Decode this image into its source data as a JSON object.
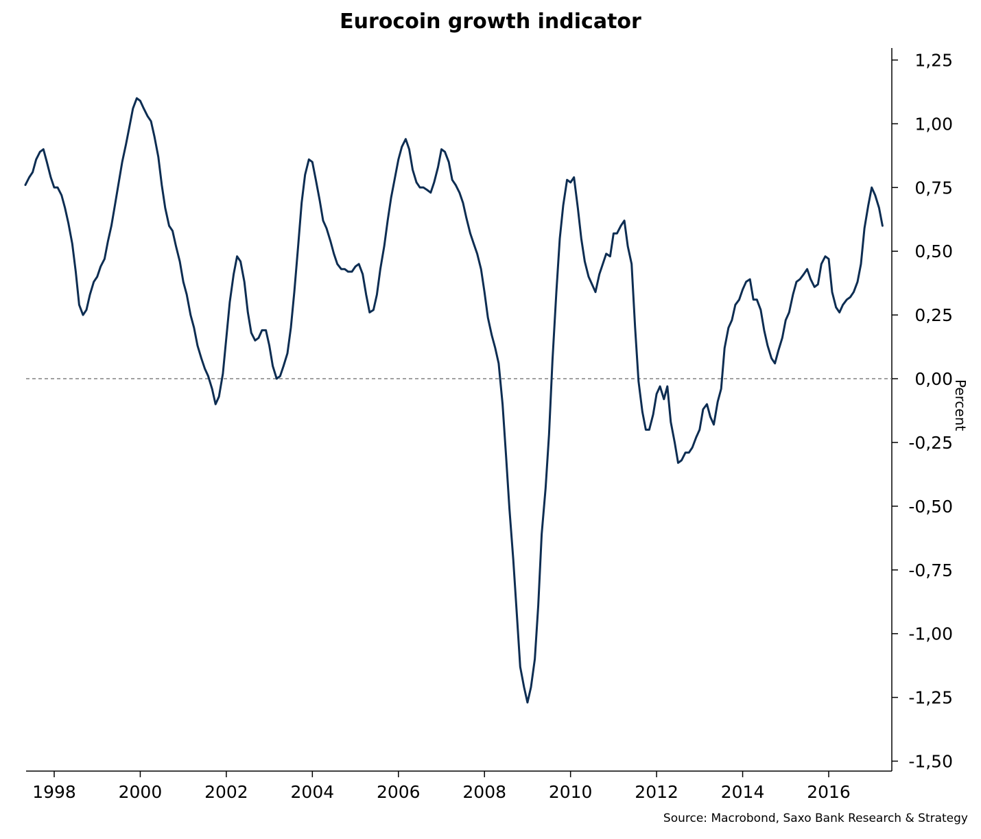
{
  "title": "Eurocoin growth indicator",
  "source": "Source: Macrobond, Saxo Bank Research & Strategy",
  "colors": {
    "series": "#0d2d52",
    "zero_line": "#808080",
    "axis": "#000000"
  },
  "chart_data": {
    "type": "line",
    "title": "Eurocoin growth indicator",
    "xlabel": "",
    "ylabel": "Percent",
    "y_axis_side": "right",
    "xlim": [
      1997.2,
      2017.35
    ],
    "ylim": [
      -1.55,
      1.3
    ],
    "x_ticks": [
      1998,
      2000,
      2002,
      2004,
      2006,
      2008,
      2010,
      2012,
      2014,
      2016
    ],
    "x_tick_labels": [
      "1998",
      "2000",
      "2002",
      "2004",
      "2006",
      "2008",
      "2010",
      "2012",
      "2014",
      "2016"
    ],
    "y_ticks": [
      1.25,
      1.0,
      0.75,
      0.5,
      0.25,
      0.0,
      -0.25,
      -0.5,
      -0.75,
      -1.0,
      -1.25,
      -1.5
    ],
    "y_tick_labels": [
      "1,25",
      "1,00",
      "0,75",
      "0,50",
      "0,25",
      "0,00",
      "-0,25",
      "-0,50",
      "-0,75",
      "-1,00",
      "-1,25",
      "-1,50"
    ],
    "reference_line": {
      "y": 0.0,
      "style": "dashed"
    },
    "grid": false,
    "legend": "none",
    "series": [
      {
        "x": [
          1997.33,
          1997.42,
          1997.5,
          1997.58,
          1997.67,
          1997.75,
          1997.83,
          1997.92,
          1998.0,
          1998.08,
          1998.17,
          1998.25,
          1998.33,
          1998.42,
          1998.5,
          1998.58,
          1998.67,
          1998.75,
          1998.83,
          1998.92,
          1999.0,
          1999.08,
          1999.17,
          1999.25,
          1999.33,
          1999.42,
          1999.5,
          1999.58,
          1999.67,
          1999.75,
          1999.83,
          1999.92,
          2000.0,
          2000.08,
          2000.17,
          2000.25,
          2000.33,
          2000.42,
          2000.5,
          2000.58,
          2000.67,
          2000.75,
          2000.83,
          2000.92,
          2001.0,
          2001.08,
          2001.17,
          2001.25,
          2001.33,
          2001.42,
          2001.5,
          2001.58,
          2001.67,
          2001.75,
          2001.83,
          2001.92,
          2002.0,
          2002.08,
          2002.17,
          2002.25,
          2002.33,
          2002.42,
          2002.5,
          2002.58,
          2002.67,
          2002.75,
          2002.83,
          2002.92,
          2003.0,
          2003.08,
          2003.17,
          2003.25,
          2003.33,
          2003.42,
          2003.5,
          2003.58,
          2003.67,
          2003.75,
          2003.83,
          2003.92,
          2004.0,
          2004.08,
          2004.17,
          2004.25,
          2004.33,
          2004.42,
          2004.5,
          2004.58,
          2004.67,
          2004.75,
          2004.83,
          2004.92,
          2005.0,
          2005.08,
          2005.17,
          2005.25,
          2005.33,
          2005.42,
          2005.5,
          2005.58,
          2005.67,
          2005.75,
          2005.83,
          2005.92,
          2006.0,
          2006.08,
          2006.17,
          2006.25,
          2006.33,
          2006.42,
          2006.5,
          2006.58,
          2006.67,
          2006.75,
          2006.83,
          2006.92,
          2007.0,
          2007.08,
          2007.17,
          2007.25,
          2007.33,
          2007.42,
          2007.5,
          2007.58,
          2007.67,
          2007.75,
          2007.83,
          2007.92,
          2008.0,
          2008.08,
          2008.17,
          2008.25,
          2008.33,
          2008.42,
          2008.5,
          2008.58,
          2008.67,
          2008.75,
          2008.83,
          2008.92,
          2009.0,
          2009.08,
          2009.17,
          2009.25,
          2009.33,
          2009.42,
          2009.5,
          2009.58,
          2009.67,
          2009.75,
          2009.83,
          2009.92,
          2010.0,
          2010.08,
          2010.17,
          2010.25,
          2010.33,
          2010.42,
          2010.5,
          2010.58,
          2010.67,
          2010.75,
          2010.83,
          2010.92,
          2011.0,
          2011.08,
          2011.17,
          2011.25,
          2011.33,
          2011.42,
          2011.5,
          2011.58,
          2011.67,
          2011.75,
          2011.83,
          2011.92,
          2012.0,
          2012.08,
          2012.17,
          2012.25,
          2012.33,
          2012.42,
          2012.5,
          2012.58,
          2012.67,
          2012.75,
          2012.83,
          2012.92,
          2013.0,
          2013.08,
          2013.17,
          2013.25,
          2013.33,
          2013.42,
          2013.5,
          2013.58,
          2013.67,
          2013.75,
          2013.83,
          2013.92,
          2014.0,
          2014.08,
          2014.17,
          2014.25,
          2014.33,
          2014.42,
          2014.5,
          2014.58,
          2014.67,
          2014.75,
          2014.83,
          2014.92,
          2015.0,
          2015.08,
          2015.17,
          2015.25,
          2015.33,
          2015.42,
          2015.5,
          2015.58,
          2015.67,
          2015.75,
          2015.83,
          2015.92,
          2016.0,
          2016.08,
          2016.17,
          2016.25,
          2016.33,
          2016.42,
          2016.5,
          2016.58,
          2016.67,
          2016.75,
          2016.83,
          2016.92,
          2017.0,
          2017.08,
          2017.17,
          2017.25
        ],
        "values": [
          0.76,
          0.79,
          0.81,
          0.86,
          0.89,
          0.9,
          0.85,
          0.79,
          0.75,
          0.75,
          0.72,
          0.67,
          0.61,
          0.53,
          0.42,
          0.29,
          0.25,
          0.27,
          0.33,
          0.38,
          0.4,
          0.44,
          0.47,
          0.54,
          0.6,
          0.69,
          0.77,
          0.85,
          0.92,
          0.99,
          1.06,
          1.1,
          1.09,
          1.06,
          1.03,
          1.01,
          0.95,
          0.87,
          0.76,
          0.67,
          0.6,
          0.58,
          0.52,
          0.46,
          0.38,
          0.33,
          0.25,
          0.2,
          0.13,
          0.08,
          0.04,
          0.01,
          -0.04,
          -0.1,
          -0.07,
          0.02,
          0.16,
          0.3,
          0.41,
          0.48,
          0.46,
          0.38,
          0.26,
          0.18,
          0.15,
          0.16,
          0.19,
          0.19,
          0.13,
          0.05,
          0.0,
          0.01,
          0.05,
          0.1,
          0.2,
          0.34,
          0.52,
          0.69,
          0.8,
          0.86,
          0.85,
          0.78,
          0.7,
          0.62,
          0.59,
          0.54,
          0.49,
          0.45,
          0.43,
          0.43,
          0.42,
          0.42,
          0.44,
          0.45,
          0.41,
          0.33,
          0.26,
          0.27,
          0.33,
          0.43,
          0.52,
          0.62,
          0.71,
          0.79,
          0.86,
          0.91,
          0.94,
          0.9,
          0.82,
          0.77,
          0.75,
          0.75,
          0.74,
          0.73,
          0.77,
          0.83,
          0.9,
          0.89,
          0.85,
          0.78,
          0.76,
          0.73,
          0.69,
          0.63,
          0.57,
          0.53,
          0.49,
          0.43,
          0.34,
          0.24,
          0.17,
          0.12,
          0.06,
          -0.1,
          -0.3,
          -0.51,
          -0.71,
          -0.92,
          -1.13,
          -1.21,
          -1.27,
          -1.21,
          -1.1,
          -0.89,
          -0.61,
          -0.43,
          -0.22,
          0.07,
          0.34,
          0.55,
          0.68,
          0.78,
          0.77,
          0.79,
          0.67,
          0.55,
          0.46,
          0.4,
          0.37,
          0.34,
          0.41,
          0.45,
          0.49,
          0.48,
          0.57,
          0.57,
          0.6,
          0.62,
          0.52,
          0.45,
          0.2,
          -0.01,
          -0.13,
          -0.2,
          -0.2,
          -0.14,
          -0.06,
          -0.03,
          -0.08,
          -0.03,
          -0.17,
          -0.25,
          -0.33,
          -0.32,
          -0.29,
          -0.29,
          -0.27,
          -0.23,
          -0.2,
          -0.12,
          -0.1,
          -0.15,
          -0.18,
          -0.09,
          -0.04,
          0.12,
          0.2,
          0.23,
          0.29,
          0.31,
          0.35,
          0.38,
          0.39,
          0.31,
          0.31,
          0.27,
          0.19,
          0.13,
          0.08,
          0.06,
          0.11,
          0.16,
          0.23,
          0.26,
          0.33,
          0.38,
          0.39,
          0.41,
          0.43,
          0.39,
          0.36,
          0.37,
          0.45,
          0.48,
          0.47,
          0.34,
          0.28,
          0.26,
          0.29,
          0.31,
          0.32,
          0.34,
          0.38,
          0.45,
          0.59,
          0.68,
          0.75,
          0.72,
          0.67,
          0.6
        ]
      }
    ]
  }
}
